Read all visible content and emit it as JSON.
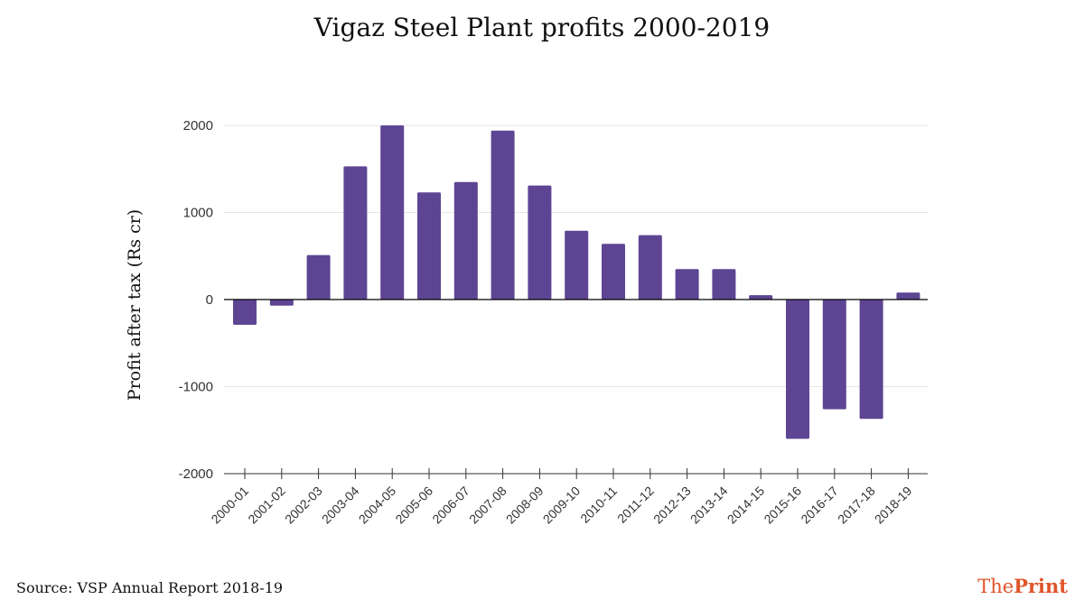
{
  "colors": {
    "bar": "#5e4593",
    "axis": "#333333",
    "grid": "#e6e6e6",
    "brand": "#e0552a"
  },
  "source": "Source: VSP Annual Report 2018-19",
  "brand": {
    "part1": "The",
    "part2": "Print"
  },
  "chart_data": {
    "type": "bar",
    "title": "Vigaz Steel Plant profits 2000-2019",
    "xlabel": "",
    "ylabel": "Profit after tax (Rs cr)",
    "ylim": [
      -2000,
      2000
    ],
    "yticks": [
      2000,
      1000,
      0,
      -1000,
      -2000
    ],
    "ytick_labels": [
      "2000",
      "1000",
      "0",
      "-1000",
      "-2000"
    ],
    "grid": true,
    "categories": [
      "2000-01",
      "2001-02",
      "2002-03",
      "2003-04",
      "2004-05",
      "2005-06",
      "2006-07",
      "2007-08",
      "2008-09",
      "2009-10",
      "2010-11",
      "2011-12",
      "2012-13",
      "2013-14",
      "2014-15",
      "2015-16",
      "2016-17",
      "2017-18",
      "2018-19"
    ],
    "values": [
      -290,
      -70,
      510,
      1530,
      2000,
      1230,
      1350,
      1940,
      1310,
      790,
      640,
      740,
      350,
      350,
      50,
      -1600,
      -1260,
      -1370,
      80
    ]
  }
}
